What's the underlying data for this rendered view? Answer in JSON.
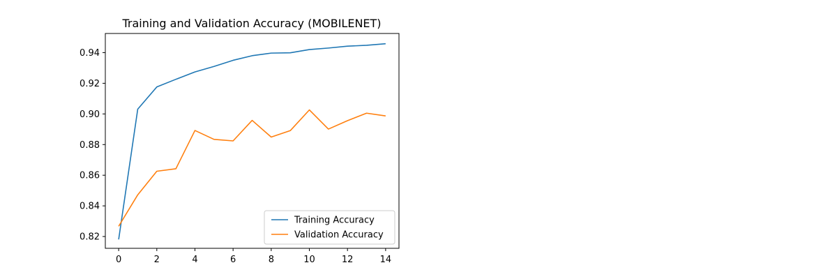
{
  "chart_data": {
    "type": "line",
    "title": "Training and Validation Accuracy (MOBILENET)",
    "xlabel": "",
    "ylabel": "",
    "x": [
      0,
      1,
      2,
      3,
      4,
      5,
      6,
      7,
      8,
      9,
      10,
      11,
      12,
      13,
      14
    ],
    "xlim": [
      -0.7,
      14.7
    ],
    "ylim": [
      0.8123,
      0.9525
    ],
    "xticks": [
      0,
      2,
      4,
      6,
      8,
      10,
      12,
      14
    ],
    "yticks": [
      0.82,
      0.84,
      0.86,
      0.88,
      0.9,
      0.92,
      0.94
    ],
    "ytick_labels": [
      "0.82",
      "0.84",
      "0.86",
      "0.88",
      "0.90",
      "0.92",
      "0.94"
    ],
    "grid": false,
    "legend_position": "lower-right",
    "series": [
      {
        "name": "Training Accuracy",
        "color": "#1f77b4",
        "values": [
          0.8181,
          0.9031,
          0.9176,
          0.9226,
          0.9274,
          0.931,
          0.935,
          0.938,
          0.9397,
          0.9399,
          0.942,
          0.943,
          0.9442,
          0.9448,
          0.9458
        ]
      },
      {
        "name": "Validation Accuracy",
        "color": "#ff7f0e",
        "values": [
          0.8267,
          0.8472,
          0.8626,
          0.8642,
          0.8892,
          0.8834,
          0.8824,
          0.8958,
          0.8849,
          0.8891,
          0.9026,
          0.8901,
          0.8956,
          0.9005,
          0.8987
        ]
      }
    ]
  }
}
